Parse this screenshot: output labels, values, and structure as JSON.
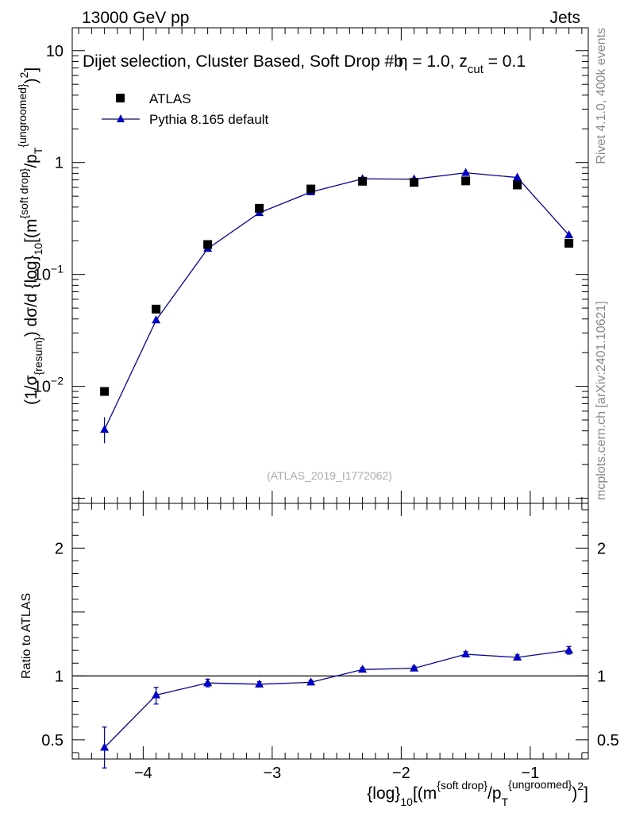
{
  "header": {
    "energy_label": "13000 GeV pp",
    "category_label": "Jets"
  },
  "side_labels": {
    "rivet": "Rivet 4.1.0,  400k events",
    "source": "mcplots.cern.ch [arXiv:2401.10621]"
  },
  "chart_data": {
    "type": "scatter",
    "title_parts": {
      "main": "Dijet selection, Cluster Based, Soft Drop #b",
      "beta_sym": "η",
      "eq1": " = 1.0, z",
      "sub": "cut",
      "eq2": " = 0.1"
    },
    "analysis_id": "(ATLAS_2019_I1772062)",
    "xlabel": {
      "p1": "{log}",
      "s1": "10",
      "p2": "[(m",
      "sup1": "{soft drop}",
      "p3": "/p",
      "sub2": "T",
      "sup2": "{ungroomed}",
      "p4": ")",
      "sup3": "2",
      "p5": "]"
    },
    "ylabel": {
      "p1": "(1/σ",
      "s1": "{resum}",
      "p2": ") dσ/d {log}",
      "s2": "10",
      "p3": "[(m",
      "sup1": "{soft drop}",
      "p4": "/p",
      "s3": "T",
      "sup2": "{ungroomed}",
      "p5": ")",
      "sup3": "2",
      "p6": "]"
    },
    "ratio_ylabel": "Ratio to ATLAS",
    "xlim": [
      -4.55,
      -0.55
    ],
    "main_ylim": [
      0.0009,
      16
    ],
    "ratio_ylim": [
      0.35,
      2.35
    ],
    "x_ticks": [
      -4,
      -3,
      -2,
      -1
    ],
    "x_tick_labels": [
      "−4",
      "−3",
      "−2",
      "−1"
    ],
    "main_y_ticks": [
      {
        "value": 10,
        "base": "10",
        "exp": ""
      },
      {
        "value": 1,
        "base": "1",
        "exp": ""
      },
      {
        "value": 0.1,
        "base": "10",
        "exp": "−1"
      },
      {
        "value": 0.01,
        "base": "10",
        "exp": "−2"
      }
    ],
    "ratio_y_ticks": [
      {
        "value": 0.5,
        "label": "0.5"
      },
      {
        "value": 1,
        "label": "1"
      },
      {
        "value": 2,
        "label": "2"
      }
    ],
    "legend": [
      {
        "name": "ATLAS",
        "marker": "square",
        "color": "#000000"
      },
      {
        "name": "Pythia 8.165 default",
        "marker": "triangle",
        "color": "#0000cc"
      }
    ],
    "x": [
      -4.3,
      -3.9,
      -3.5,
      -3.1,
      -2.7,
      -2.3,
      -1.9,
      -1.5,
      -1.1,
      -0.7
    ],
    "series": [
      {
        "name": "ATLAS",
        "values": [
          0.009,
          0.049,
          0.185,
          0.39,
          0.58,
          0.68,
          0.665,
          0.685,
          0.63,
          0.19
        ]
      },
      {
        "name": "Pythia 8.165 default",
        "values": [
          0.0041,
          0.039,
          0.17,
          0.355,
          0.545,
          0.715,
          0.71,
          0.81,
          0.735,
          0.225
        ],
        "err_low": [
          0.0031,
          0.037,
          0.163,
          0.345,
          0.532,
          0.7,
          0.695,
          0.793,
          0.72,
          0.219
        ],
        "err_high": [
          0.0053,
          0.041,
          0.177,
          0.365,
          0.558,
          0.73,
          0.725,
          0.827,
          0.75,
          0.231
        ]
      }
    ],
    "ratio": {
      "values": [
        0.44,
        0.85,
        0.945,
        0.935,
        0.95,
        1.05,
        1.06,
        1.17,
        1.145,
        1.2
      ],
      "err_low": [
        0.28,
        0.78,
        0.915,
        0.915,
        0.935,
        1.035,
        1.045,
        1.15,
        1.125,
        1.17
      ],
      "err_high": [
        0.6,
        0.91,
        0.975,
        0.955,
        0.965,
        1.065,
        1.075,
        1.19,
        1.165,
        1.23
      ]
    }
  }
}
